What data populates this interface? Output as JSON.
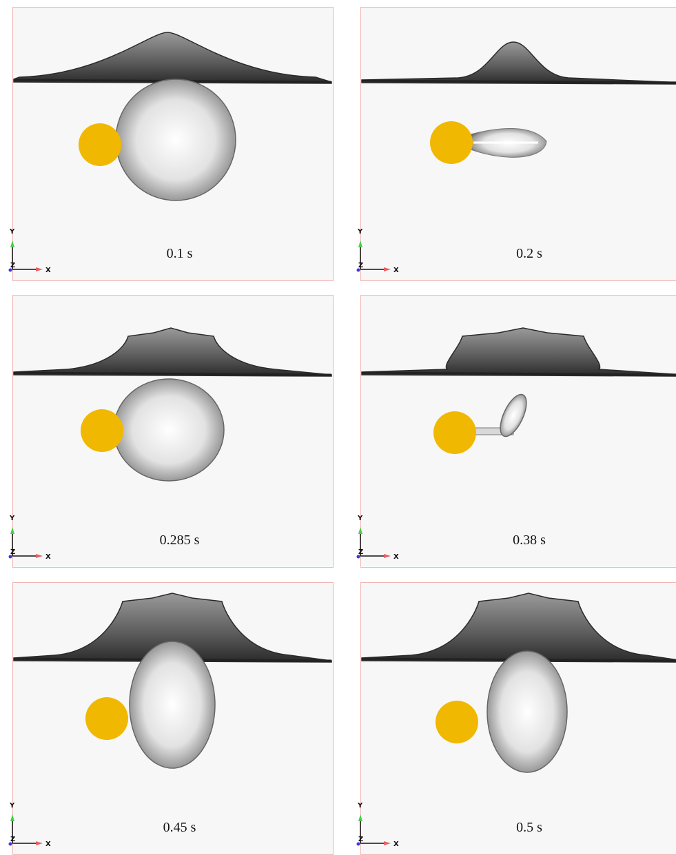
{
  "axis_labels": {
    "x": "X",
    "y": "Y",
    "z": "Z"
  },
  "panels": [
    {
      "time": "0.1 s"
    },
    {
      "time": "0.2 s"
    },
    {
      "time": "0.285 s"
    },
    {
      "time": "0.38 s"
    },
    {
      "time": "0.45 s"
    },
    {
      "time": "0.5 s"
    }
  ]
}
